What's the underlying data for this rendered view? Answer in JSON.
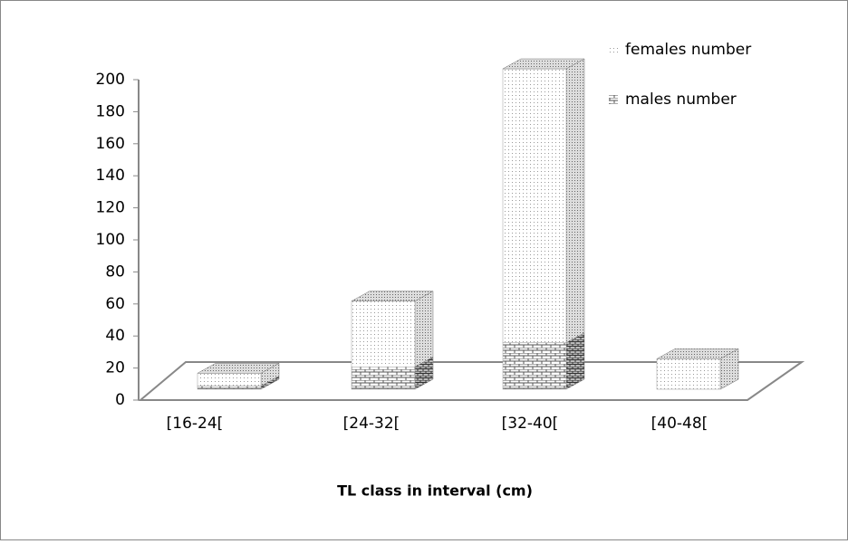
{
  "chart_data": {
    "type": "bar3d_stacked",
    "x_label": "TL class in interval (cm)",
    "categories": [
      "[16-24[",
      "[24-32[",
      "[32-40[",
      "[40-48["
    ],
    "series": [
      {
        "name": "males number",
        "color": "#c4c4c4",
        "values": [
          2,
          14,
          29,
          0
        ]
      },
      {
        "name": "females number",
        "color": "#e6e6e6",
        "values": [
          8,
          41,
          171,
          19
        ]
      }
    ],
    "ylim": [
      0,
      200
    ],
    "yticks": [
      0,
      20,
      40,
      60,
      80,
      100,
      120,
      140,
      160,
      180,
      200
    ]
  }
}
